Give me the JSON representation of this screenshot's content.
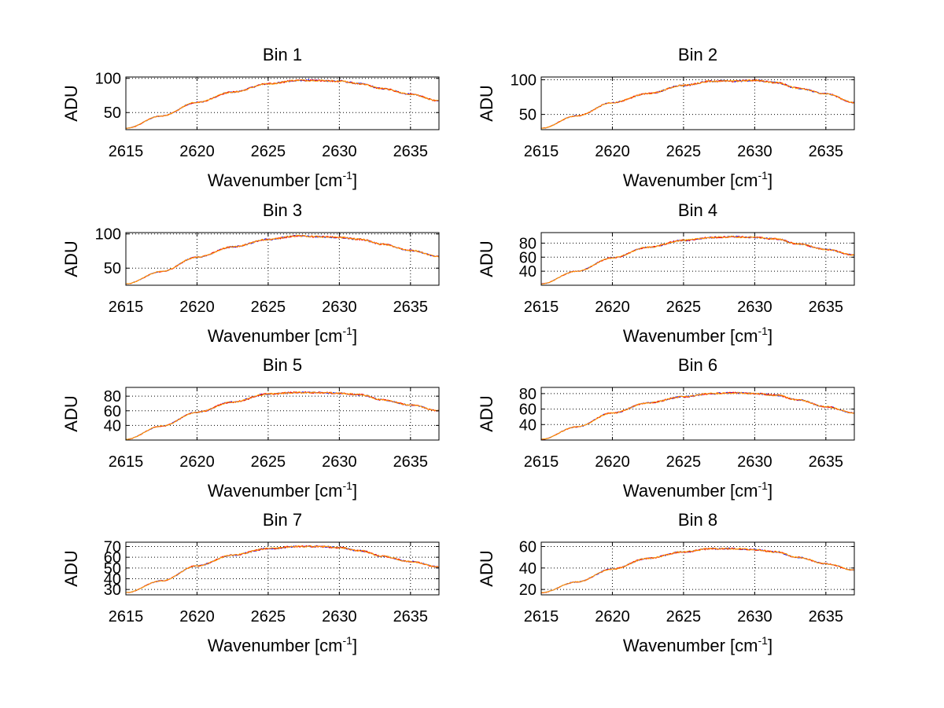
{
  "chart_data": [
    {
      "type": "line",
      "title": "Bin 1",
      "xlabel": "Wavenumber [cm",
      "xlabel_sup": "-1",
      "xlabel_end": "]",
      "ylabel": "ADU",
      "xlim": [
        2615,
        2637
      ],
      "ylim": [
        25,
        102
      ],
      "xticks": [
        2615,
        2620,
        2625,
        2630,
        2635
      ],
      "yticks": [
        50,
        100
      ],
      "grid": true,
      "series_colors": [
        "#0000ff",
        "#ff0000",
        "#ffa500"
      ],
      "curve": {
        "x": [
          2615,
          2617.5,
          2620,
          2622.5,
          2625,
          2627,
          2628.5,
          2630,
          2631.5,
          2633,
          2635,
          2637
        ],
        "y": [
          27,
          45,
          65,
          80,
          92,
          97,
          97,
          96,
          92,
          85,
          77,
          67
        ]
      }
    },
    {
      "type": "line",
      "title": "Bin 2",
      "xlabel": "Wavenumber [cm",
      "xlabel_sup": "-1",
      "xlabel_end": "]",
      "ylabel": "ADU",
      "xlim": [
        2615,
        2637
      ],
      "ylim": [
        28,
        104
      ],
      "xticks": [
        2615,
        2620,
        2625,
        2630,
        2635
      ],
      "yticks": [
        50,
        100
      ],
      "grid": true,
      "series_colors": [
        "#0000ff",
        "#ff0000",
        "#ffa500"
      ],
      "curve": {
        "x": [
          2615,
          2617.5,
          2620,
          2622.5,
          2625,
          2627,
          2628.5,
          2630,
          2631.5,
          2633,
          2635,
          2637
        ],
        "y": [
          30,
          48,
          67,
          80,
          92,
          98,
          98,
          99,
          96,
          88,
          80,
          67
        ]
      }
    },
    {
      "type": "line",
      "title": "Bin 3",
      "xlabel": "Wavenumber [cm",
      "xlabel_sup": "-1",
      "xlabel_end": "]",
      "ylabel": "ADU",
      "xlim": [
        2615,
        2637
      ],
      "ylim": [
        25,
        102
      ],
      "xticks": [
        2615,
        2620,
        2625,
        2630,
        2635
      ],
      "yticks": [
        50,
        100
      ],
      "grid": true,
      "series_colors": [
        "#0000ff",
        "#ff0000",
        "#ffa500"
      ],
      "curve": {
        "x": [
          2615,
          2617.5,
          2620,
          2622.5,
          2625,
          2627,
          2628.5,
          2630,
          2631.5,
          2633,
          2635,
          2637
        ],
        "y": [
          27,
          45,
          66,
          81,
          92,
          97,
          96,
          95,
          92,
          85,
          76,
          67
        ]
      }
    },
    {
      "type": "line",
      "title": "Bin 4",
      "xlabel": "Wavenumber [cm",
      "xlabel_sup": "-1",
      "xlabel_end": "]",
      "ylabel": "ADU",
      "xlim": [
        2615,
        2637
      ],
      "ylim": [
        20,
        95
      ],
      "xticks": [
        2615,
        2620,
        2625,
        2630,
        2635
      ],
      "yticks": [
        40,
        60,
        80
      ],
      "grid": true,
      "series_colors": [
        "#0000ff",
        "#ff0000",
        "#ffa500"
      ],
      "curve": {
        "x": [
          2615,
          2617.5,
          2620,
          2622.5,
          2625,
          2627,
          2628.5,
          2630,
          2631.5,
          2633,
          2635,
          2637
        ],
        "y": [
          22,
          40,
          59,
          74,
          84,
          88,
          89,
          88,
          86,
          79,
          71,
          63
        ]
      }
    },
    {
      "type": "line",
      "title": "Bin 5",
      "xlabel": "Wavenumber [cm",
      "xlabel_sup": "-1",
      "xlabel_end": "]",
      "ylabel": "ADU",
      "xlim": [
        2615,
        2637
      ],
      "ylim": [
        20,
        92
      ],
      "xticks": [
        2615,
        2620,
        2625,
        2630,
        2635
      ],
      "yticks": [
        40,
        60,
        80
      ],
      "grid": true,
      "series_colors": [
        "#0000ff",
        "#ff0000",
        "#ffa500"
      ],
      "curve": {
        "x": [
          2615,
          2617.5,
          2620,
          2622.5,
          2625,
          2627,
          2628.5,
          2630,
          2631.5,
          2633,
          2635,
          2637
        ],
        "y": [
          21,
          39,
          58,
          72,
          83,
          85,
          85,
          84,
          82,
          75,
          68,
          60
        ]
      }
    },
    {
      "type": "line",
      "title": "Bin 6",
      "xlabel": "Wavenumber [cm",
      "xlabel_sup": "-1",
      "xlabel_end": "]",
      "ylabel": "ADU",
      "xlim": [
        2615,
        2637
      ],
      "ylim": [
        20,
        88
      ],
      "xticks": [
        2615,
        2620,
        2625,
        2630,
        2635
      ],
      "yticks": [
        40,
        60,
        80
      ],
      "grid": true,
      "series_colors": [
        "#0000ff",
        "#ff0000",
        "#ffa500"
      ],
      "curve": {
        "x": [
          2615,
          2617.5,
          2620,
          2622.5,
          2625,
          2627,
          2628.5,
          2630,
          2631.5,
          2633,
          2635,
          2637
        ],
        "y": [
          21,
          37,
          55,
          68,
          76,
          80,
          81,
          80,
          78,
          72,
          63,
          55
        ]
      }
    },
    {
      "type": "line",
      "title": "Bin 7",
      "xlabel": "Wavenumber [cm",
      "xlabel_sup": "-1",
      "xlabel_end": "]",
      "ylabel": "ADU",
      "xlim": [
        2615,
        2637
      ],
      "ylim": [
        25,
        74
      ],
      "xticks": [
        2615,
        2620,
        2625,
        2630,
        2635
      ],
      "yticks": [
        30,
        40,
        50,
        60,
        70
      ],
      "ytick_labels": [
        "30",
        "40",
        "50",
        "60",
        "70"
      ],
      "grid": true,
      "series_colors": [
        "#0000ff",
        "#ff0000",
        "#ffa500"
      ],
      "curve": {
        "x": [
          2615,
          2617.5,
          2620,
          2622.5,
          2625,
          2627,
          2628.5,
          2630,
          2631.5,
          2633,
          2635,
          2637
        ],
        "y": [
          27,
          38,
          52,
          62,
          68,
          70,
          70,
          69,
          66,
          61,
          56,
          51
        ]
      }
    },
    {
      "type": "line",
      "title": "Bin 8",
      "xlabel": "Wavenumber [cm",
      "xlabel_sup": "-1",
      "xlabel_end": "]",
      "ylabel": "ADU",
      "xlim": [
        2615,
        2637
      ],
      "ylim": [
        15,
        64
      ],
      "xticks": [
        2615,
        2620,
        2625,
        2630,
        2635
      ],
      "yticks": [
        20,
        40,
        60
      ],
      "grid": true,
      "series_colors": [
        "#0000ff",
        "#ff0000",
        "#ffa500"
      ],
      "curve": {
        "x": [
          2615,
          2617.5,
          2620,
          2622.5,
          2625,
          2627,
          2628.5,
          2630,
          2631.5,
          2633,
          2635,
          2637
        ],
        "y": [
          17,
          27,
          39,
          49,
          55,
          58,
          58,
          57,
          55,
          50,
          44,
          38
        ]
      }
    }
  ]
}
